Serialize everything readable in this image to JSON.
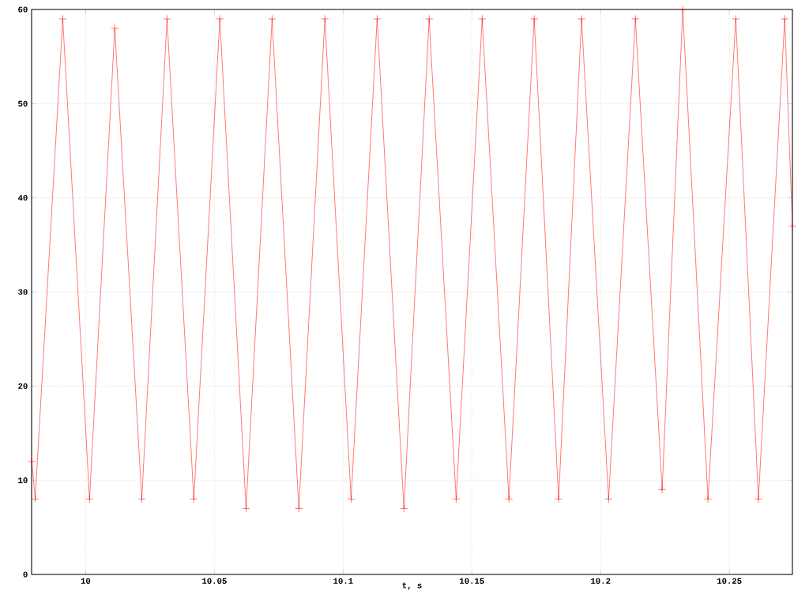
{
  "chart_data": {
    "type": "line",
    "xlabel": "t, s",
    "x": [
      9.9791,
      9.9804,
      9.9911,
      10.0015,
      10.0113,
      10.0218,
      10.0316,
      10.042,
      10.0521,
      10.0623,
      10.0724,
      10.0828,
      10.0929,
      10.1031,
      10.1132,
      10.1236,
      10.1334,
      10.1439,
      10.154,
      10.1644,
      10.1742,
      10.1837,
      10.1926,
      10.2031,
      10.2135,
      10.2239,
      10.2319,
      10.2417,
      10.2525,
      10.2613,
      10.2715,
      10.2745
    ],
    "series": [
      {
        "color": "#ff0000",
        "values": [
          12,
          8,
          59,
          8,
          58,
          8,
          59,
          8,
          59,
          7,
          59,
          7,
          59,
          8,
          59,
          7,
          59,
          8,
          59,
          8,
          59,
          8,
          59,
          8,
          59,
          9,
          60,
          8,
          59,
          8,
          59,
          37
        ]
      }
    ],
    "xlim": [
      9.979,
      10.2745
    ],
    "ylim": [
      0,
      60
    ],
    "xticks": [
      10,
      10.05,
      10.1,
      10.15,
      10.2,
      10.25
    ],
    "yticks": [
      0,
      10,
      20,
      30,
      40,
      50,
      60
    ],
    "grid": true,
    "marker": "cross",
    "line_style": "solid"
  }
}
